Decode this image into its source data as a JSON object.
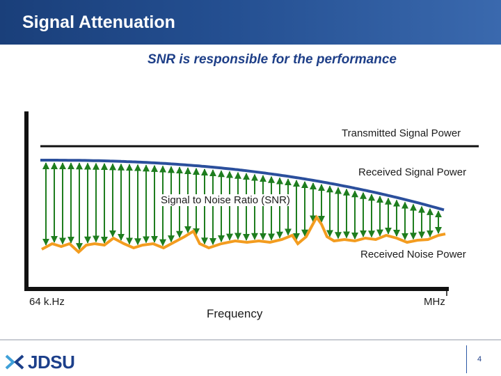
{
  "title": "Signal Attenuation",
  "subtitle": "SNR is responsible for the performance",
  "labels": {
    "transmitted": "Transmitted Signal Power",
    "received_signal": "Received Signal Power",
    "snr": "Signal to Noise Ratio (SNR)",
    "received_noise": "Received Noise Power",
    "x_start": "64 k.Hz",
    "x_axis": "Frequency",
    "x_end": "MHz"
  },
  "logo_text": "JDSU",
  "page_number": "4",
  "colors": {
    "title_bar": "#244f91",
    "signal_curve": "#2b4f9c",
    "snr_arrows": "#1e7d1e",
    "noise_curve": "#f39c1f"
  }
}
